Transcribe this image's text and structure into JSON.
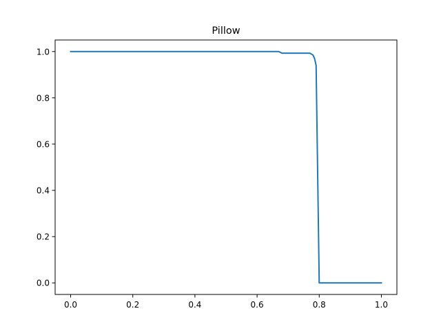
{
  "chart_data": {
    "type": "line",
    "title": "Pillow",
    "xlabel": "",
    "ylabel": "",
    "xlim": [
      -0.05,
      1.05
    ],
    "ylim": [
      -0.05,
      1.05
    ],
    "xticks": [
      0.0,
      0.2,
      0.4,
      0.6,
      0.8,
      1.0
    ],
    "xtick_labels": [
      "0.0",
      "0.2",
      "0.4",
      "0.6",
      "0.8",
      "1.0"
    ],
    "yticks": [
      0.0,
      0.2,
      0.4,
      0.6,
      0.8,
      1.0
    ],
    "ytick_labels": [
      "0.0",
      "0.2",
      "0.4",
      "0.6",
      "0.8",
      "1.0"
    ],
    "grid": false,
    "legend": false,
    "series": [
      {
        "color": "#1f77b4",
        "x": [
          0.0,
          0.67,
          0.68,
          0.77,
          0.78,
          0.785,
          0.79,
          0.8,
          0.81,
          1.0
        ],
        "y": [
          1.0,
          1.0,
          0.993,
          0.993,
          0.985,
          0.97,
          0.94,
          0.0,
          0.0,
          0.0
        ]
      }
    ]
  }
}
